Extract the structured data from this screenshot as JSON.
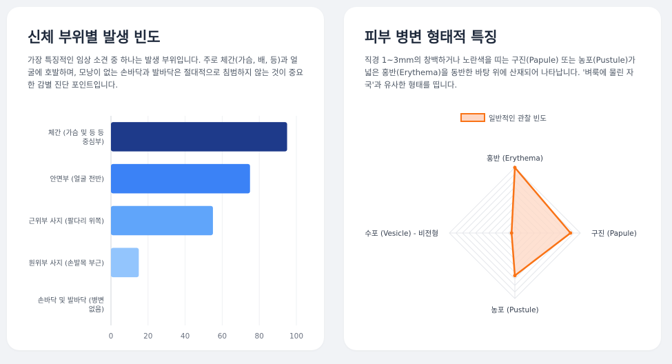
{
  "left": {
    "title": "신체 부위별 발생 빈도",
    "description": "가장 특징적인 임상 소견 중 하나는 발생 부위입니다. 주로 체간(가슴, 배, 등)과 얼굴에 호발하며, 모낭이 없는 손바닥과 발바닥은 절대적으로 침범하지 않는 것이 중요한 감별 진단 포인트입니다."
  },
  "right": {
    "title": "피부 병변 형태적 특징",
    "description": "직경 1~3mm의 창백하거나 노란색을 띠는 구진(Papule) 또는 농포(Pustule)가 넓은 홍반(Erythema)을 동반한 바탕 위에 산재되어 나타납니다. '벼룩에 물린 자국'과 유사한 형태를 띱니다."
  },
  "chart_data": [
    {
      "type": "bar",
      "orientation": "horizontal",
      "categories": [
        [
          "체간 (가슴 및 등 등",
          "중심부)"
        ],
        [
          "안면부 (얼굴 전반)"
        ],
        [
          "근위부 사지 (팔다리 위쪽)"
        ],
        [
          "원위부 사지 (손발목 부근)"
        ],
        [
          "손바닥 및 발바닥 (병변",
          "없음)"
        ]
      ],
      "values": [
        95,
        75,
        55,
        15,
        0
      ],
      "colors": [
        "#1e3a8a",
        "#3b82f6",
        "#60a5fa",
        "#93c5fd",
        "#bfdbfe"
      ],
      "xlim": [
        0,
        100
      ],
      "xticks": [
        0,
        20,
        40,
        60,
        80,
        100
      ]
    },
    {
      "type": "radar",
      "legend": "일반적인 관찰 빈도",
      "axes": [
        "홍반 (Erythema)",
        "구진 (Papule)",
        "농포 (Pustule)",
        "수포 (Vesicle) - 비전형"
      ],
      "values": [
        100,
        85,
        65,
        5
      ],
      "max": 100,
      "stroke_color": "#f97316",
      "fill_color": "#fed7c3"
    }
  ]
}
